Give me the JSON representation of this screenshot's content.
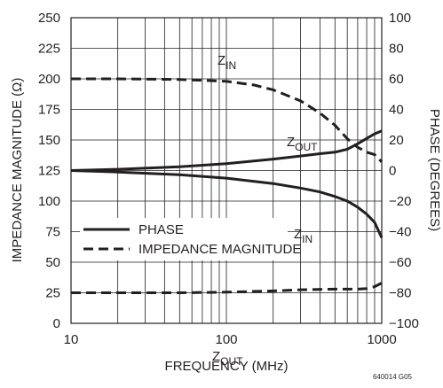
{
  "chart_data": {
    "type": "line",
    "x_scale": "log",
    "xlim": [
      10,
      1000
    ],
    "ylim_left": [
      0,
      250
    ],
    "ylim_right": [
      -100,
      100
    ],
    "xlabel": "FREQUENCY (MHz)",
    "ylabel_left": "IMPEDANCE MAGNITUDE (Ω)",
    "ylabel_right": "PHASE (DEGREES)",
    "x_ticks": [
      "10",
      "100",
      "1000"
    ],
    "y_left_ticks": [
      "0",
      "25",
      "50",
      "75",
      "100",
      "125",
      "150",
      "175",
      "200",
      "225",
      "250"
    ],
    "y_right_ticks": [
      "−100",
      "−80",
      "−60",
      "−40",
      "−20",
      "0",
      "20",
      "40",
      "60",
      "80",
      "100"
    ],
    "grid": true,
    "legend": {
      "position": "center-left",
      "entries": [
        {
          "label": "PHASE",
          "style": "solid"
        },
        {
          "label": "IMPEDANCE MAGNITUDE",
          "style": "dashed"
        }
      ]
    },
    "annotations": [
      {
        "main": "Z",
        "sub": "IN",
        "series": "zin-magnitude"
      },
      {
        "main": "Z",
        "sub": "OUT",
        "series": "zout-phase"
      },
      {
        "main": "Z",
        "sub": "IN",
        "series": "zin-phase"
      },
      {
        "main": "Z",
        "sub": "OUT",
        "series": "zout-magnitude"
      }
    ],
    "series": [
      {
        "key": "zin-magnitude",
        "style": "dashed",
        "axis": "left",
        "x": [
          10,
          20,
          50,
          100,
          150,
          200,
          300,
          400,
          500,
          600,
          700,
          800,
          900,
          1000
        ],
        "y": [
          200,
          200,
          199.5,
          198,
          195,
          191,
          182,
          172,
          162,
          151,
          144,
          140,
          138,
          132
        ]
      },
      {
        "key": "zout-magnitude",
        "style": "dashed",
        "axis": "left",
        "x": [
          10,
          20,
          50,
          100,
          200,
          300,
          500,
          600,
          700,
          800,
          900,
          1000
        ],
        "y": [
          25,
          25,
          25,
          25.5,
          26.5,
          27.5,
          28,
          28,
          28,
          28.5,
          30,
          33
        ]
      },
      {
        "key": "zout-phase",
        "style": "solid",
        "axis": "right",
        "x": [
          10,
          20,
          50,
          100,
          200,
          300,
          400,
          500,
          600,
          700,
          800,
          900,
          1000
        ],
        "y": [
          0,
          0.8,
          2.5,
          4.5,
          7.5,
          9.5,
          11,
          12,
          14,
          17.5,
          21,
          24,
          26
        ]
      },
      {
        "key": "zin-phase",
        "style": "solid",
        "axis": "right",
        "x": [
          10,
          20,
          50,
          100,
          200,
          300,
          400,
          500,
          600,
          700,
          800,
          900,
          1000
        ],
        "y": [
          0,
          -1,
          -2.8,
          -5,
          -8.5,
          -11.5,
          -14,
          -17,
          -20,
          -24,
          -28.5,
          -34,
          -44
        ]
      }
    ]
  },
  "figure_code": "640014 G05"
}
